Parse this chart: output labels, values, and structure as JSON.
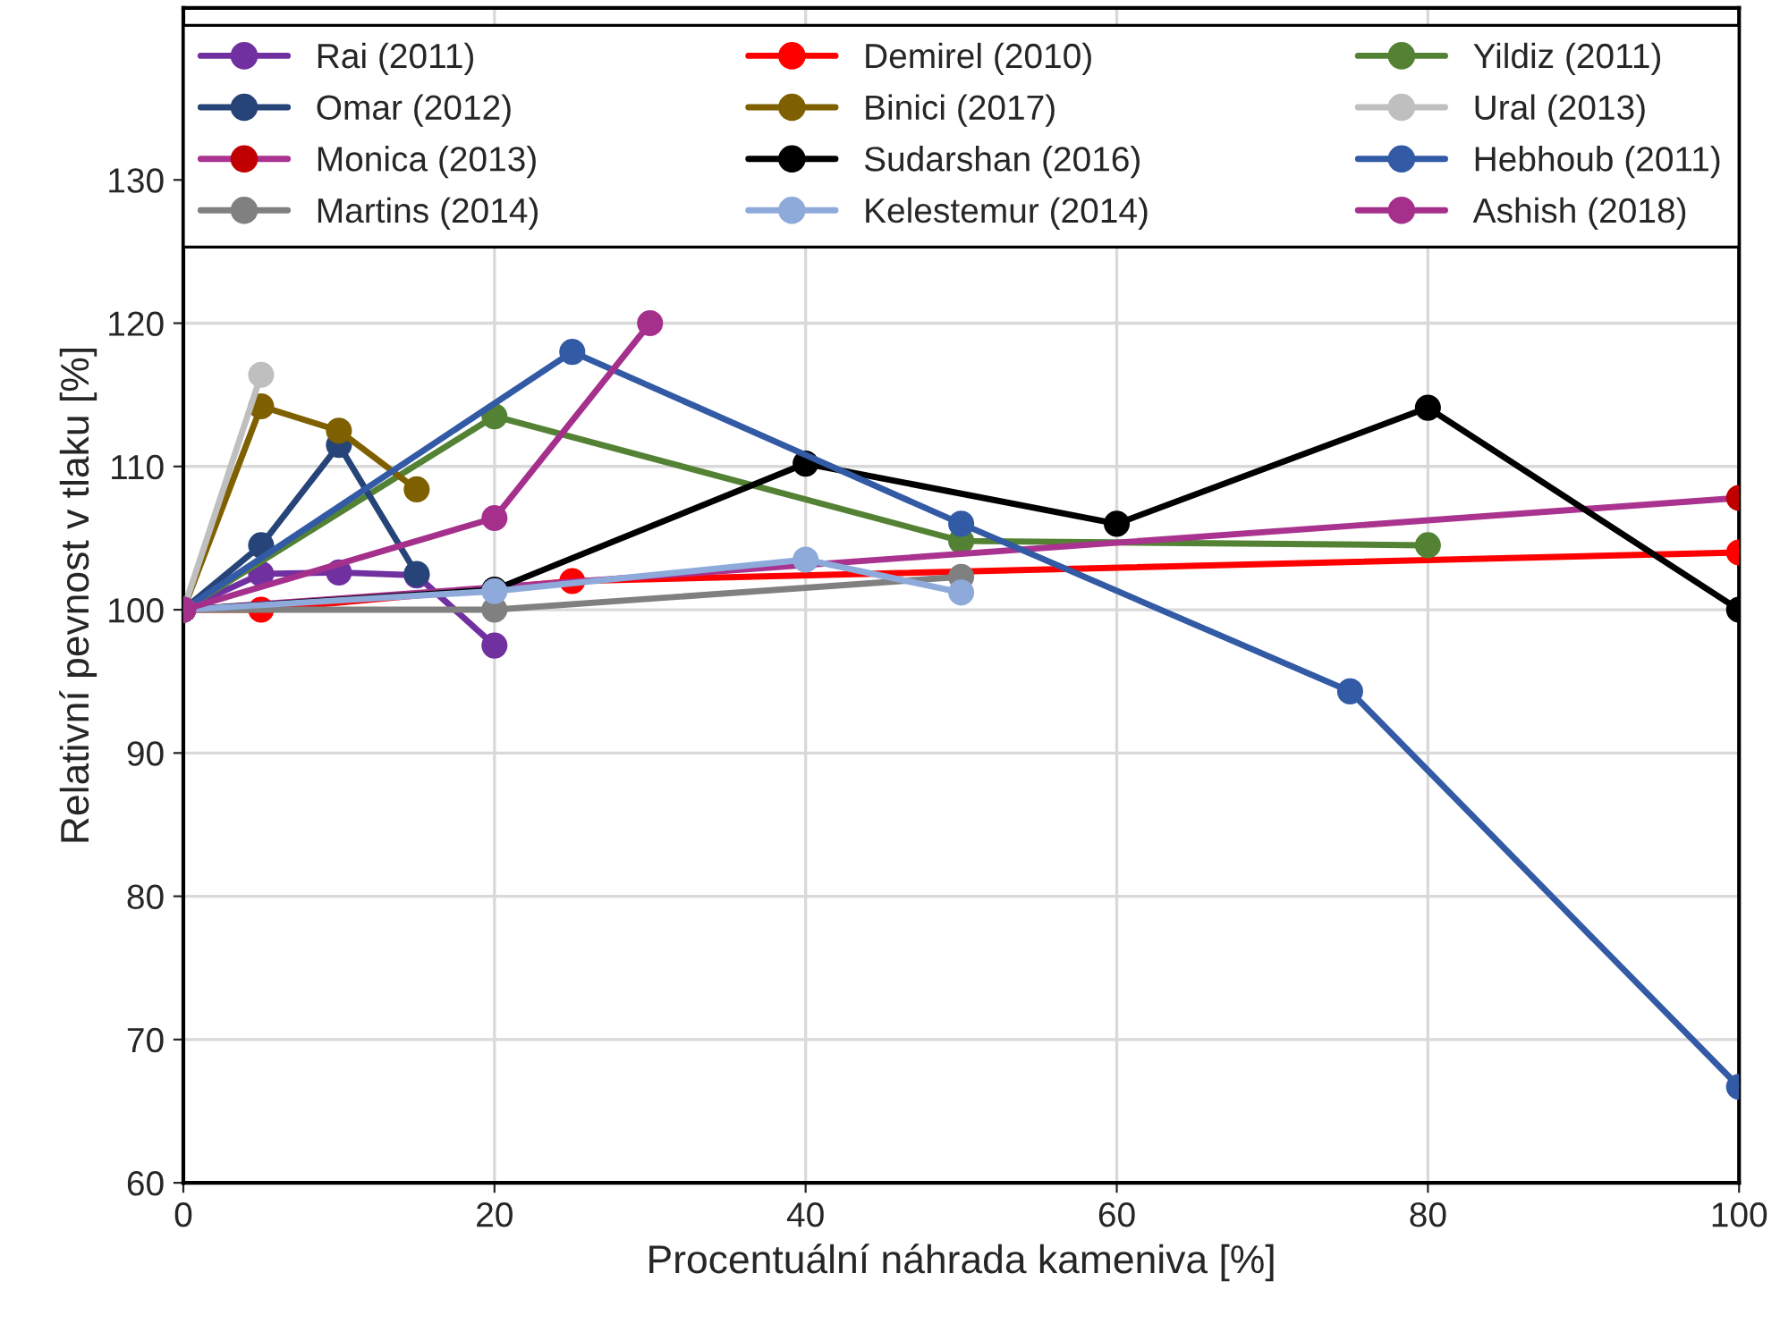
{
  "chart_data": {
    "type": "line",
    "xlabel": "Procentuální náhrada kameniva [%]",
    "ylabel": "Relativní pevnost v tlaku [%]",
    "xlim": [
      0,
      100
    ],
    "xticks": [
      0,
      20,
      40,
      60,
      80,
      100
    ],
    "ylim": [
      60,
      142
    ],
    "yticks": [
      60,
      70,
      80,
      90,
      100,
      110,
      120,
      130
    ],
    "grid": true,
    "legend": "top",
    "marker": "circle",
    "line_style": "solid",
    "series": [
      {
        "name": "Rai (2011)",
        "color": "#7030a0",
        "x": [
          0,
          5,
          10,
          15,
          20
        ],
        "values": [
          100,
          102.5,
          102.6,
          102.4,
          97.5
        ]
      },
      {
        "name": "Demirel (2010)",
        "color": "#ff0000",
        "x": [
          0,
          5,
          25,
          100
        ],
        "values": [
          100,
          100,
          102,
          104
        ]
      },
      {
        "name": "Yildiz (2011)",
        "color": "#548235",
        "x": [
          0,
          20,
          50,
          80
        ],
        "values": [
          100,
          113.5,
          104.8,
          104.5
        ]
      },
      {
        "name": "Omar (2012)",
        "color": "#264478",
        "x": [
          0,
          5,
          10,
          15
        ],
        "values": [
          100,
          104.5,
          111.5,
          102.5
        ]
      },
      {
        "name": "Binici (2017)",
        "color": "#7f6000",
        "x": [
          0,
          5,
          10,
          15
        ],
        "values": [
          100,
          114.2,
          112.5,
          108.4
        ]
      },
      {
        "name": "Ural (2013)",
        "color": "#bfbfbf",
        "x": [
          0,
          5
        ],
        "values": [
          100,
          116.4
        ]
      },
      {
        "name": "Monica (2013)",
        "color": "#a9338f",
        "colors": [
          "#c00000",
          "#c00000"
        ],
        "x": [
          0,
          100
        ],
        "values": [
          100,
          107.8
        ]
      },
      {
        "name": "Sudarshan (2016)",
        "color": "#000000",
        "x": [
          0,
          20,
          40,
          60,
          80,
          100
        ],
        "values": [
          100,
          101.4,
          110.2,
          106,
          114.1,
          100
        ]
      },
      {
        "name": "Hebhoub (2011)",
        "color": "#325aa5",
        "x": [
          0,
          25,
          50,
          75,
          100
        ],
        "values": [
          100,
          118,
          106,
          94.3,
          66.7
        ]
      },
      {
        "name": "Martins (2014)",
        "color": "#808080",
        "x": [
          0,
          20,
          50
        ],
        "values": [
          100,
          100,
          102.3
        ]
      },
      {
        "name": "Kelestemur (2014)",
        "color": "#8eaadb",
        "x": [
          0,
          20,
          40,
          50
        ],
        "values": [
          100,
          101.3,
          103.5,
          101.2
        ]
      },
      {
        "name": "Ashish (2018)",
        "color": "#a5308c",
        "x": [
          0,
          20,
          30
        ],
        "values": [
          100,
          106.4,
          120
        ]
      }
    ]
  }
}
